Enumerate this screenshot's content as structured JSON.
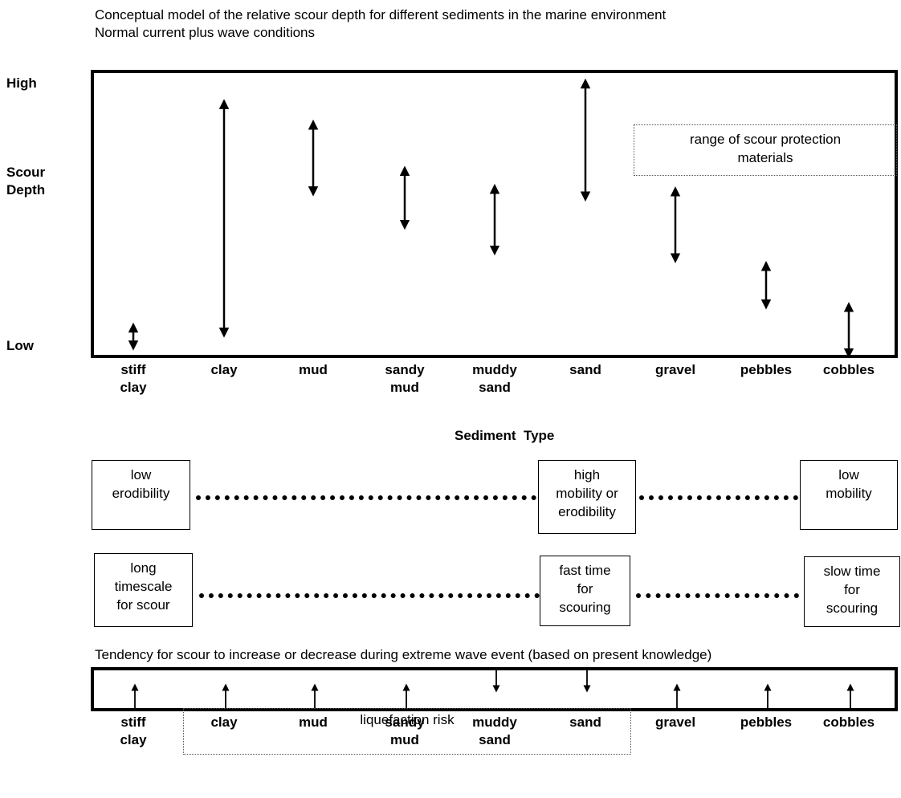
{
  "title_line1": "Conceptual model of the relative scour depth for different sediments in the marine environment",
  "title_line2": "Normal current plus wave conditions",
  "y_axis": {
    "high": "High",
    "label": "Scour\nDepth",
    "low": "Low"
  },
  "x_axis_title": "Sediment  Type",
  "categories": [
    "stiff\nclay",
    "clay",
    "mud",
    "sandy\nmud",
    "muddy\nsand",
    "sand",
    "gravel",
    "pebbles",
    "cobbles"
  ],
  "scour_ranges": [
    {
      "sediment": "stiff clay",
      "low": 0.03,
      "high": 0.1
    },
    {
      "sediment": "clay",
      "low": 0.08,
      "high": 0.97
    },
    {
      "sediment": "mud",
      "low": 0.63,
      "high": 0.89
    },
    {
      "sediment": "sandy mud",
      "low": 0.5,
      "high": 0.71
    },
    {
      "sediment": "muddy sand",
      "low": 0.4,
      "high": 0.64
    },
    {
      "sediment": "sand",
      "low": 0.61,
      "high": 1.05
    },
    {
      "sediment": "gravel",
      "low": 0.37,
      "high": 0.63
    },
    {
      "sediment": "pebbles",
      "low": 0.19,
      "high": 0.34
    },
    {
      "sediment": "cobbles",
      "low": 0.0,
      "high": 0.18
    }
  ],
  "scour_protection_note": "range of scour protection\nmaterials",
  "erodibility_row": {
    "left": "low\nerodibility",
    "middle": "high\nmobility or\nerodibility",
    "right": "low\nmobility"
  },
  "timescale_row": {
    "left": "long\ntimescale\nfor scour",
    "middle": "fast time\nfor\nscouring",
    "right": "slow time\nfor\nscouring"
  },
  "extreme_event_title": "Tendency for scour to increase or decrease during extreme wave event (based on present knowledge)",
  "extreme_event_tendency": [
    "increase",
    "increase",
    "increase",
    "increase",
    "decrease",
    "decrease",
    "increase",
    "increase",
    "increase"
  ],
  "liquefaction_note": "liquefaction risk"
}
